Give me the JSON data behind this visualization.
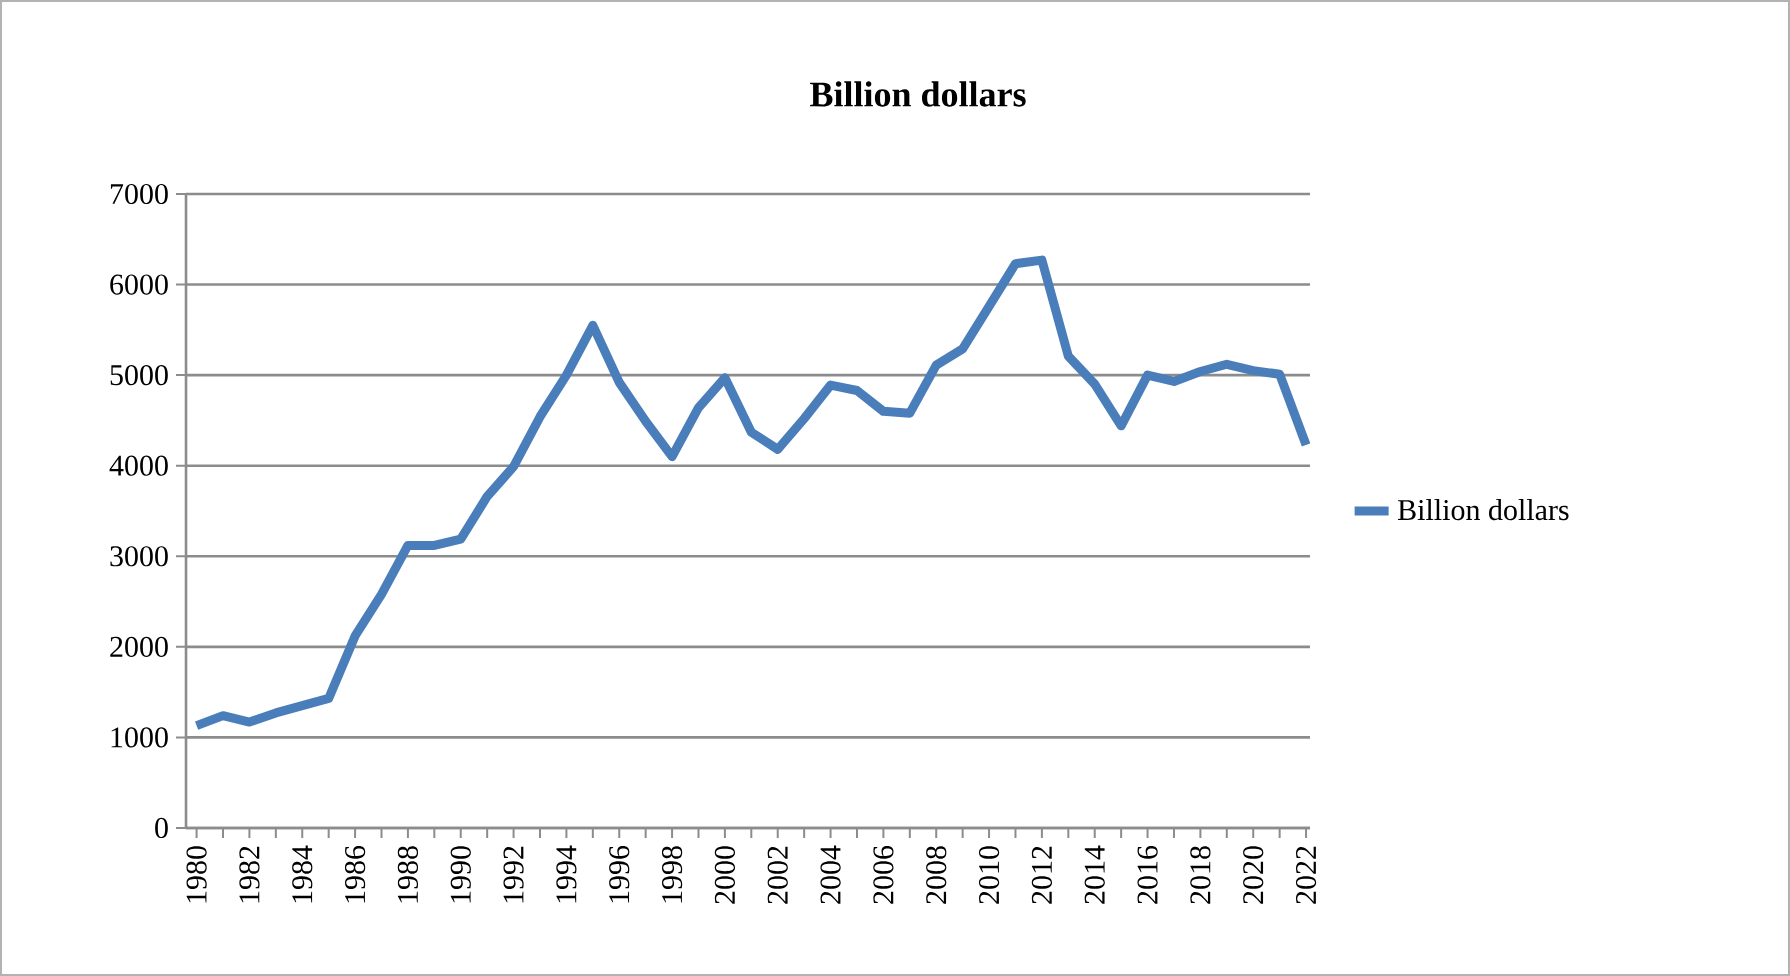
{
  "chart_data": {
    "type": "line",
    "title": "Billion dollars",
    "categories": [
      "1980",
      null,
      "1982",
      null,
      "1984",
      null,
      "1986",
      null,
      "1988",
      null,
      "1990",
      null,
      "1992",
      null,
      "1994",
      null,
      "1996",
      null,
      "1998",
      null,
      "2000",
      null,
      "2002",
      null,
      "2004",
      null,
      "2006",
      null,
      "2008",
      null,
      "2010",
      null,
      "2012",
      null,
      "2014",
      null,
      "2016",
      null,
      "2018",
      null,
      "2020",
      null,
      "2022"
    ],
    "series": [
      {
        "name": "Billion dollars",
        "color": "#4a7ebb",
        "values": [
          1130,
          1240,
          1170,
          1270,
          1350,
          1430,
          2120,
          2580,
          3120,
          3120,
          3190,
          3660,
          3990,
          4540,
          5000,
          5550,
          4920,
          4490,
          4100,
          4640,
          4970,
          4370,
          4180,
          4520,
          4890,
          4830,
          4600,
          4580,
          5110,
          5290,
          5760,
          6230,
          6270,
          5210,
          4900,
          4440,
          5000,
          4930,
          5040,
          5120,
          5050,
          5010,
          4230
        ]
      }
    ],
    "ylim": [
      0,
      7000
    ],
    "yticks": [
      0,
      1000,
      2000,
      3000,
      4000,
      5000,
      6000,
      7000
    ],
    "grid": "y",
    "legend": "right",
    "marker": "none",
    "line_style": "solid"
  }
}
